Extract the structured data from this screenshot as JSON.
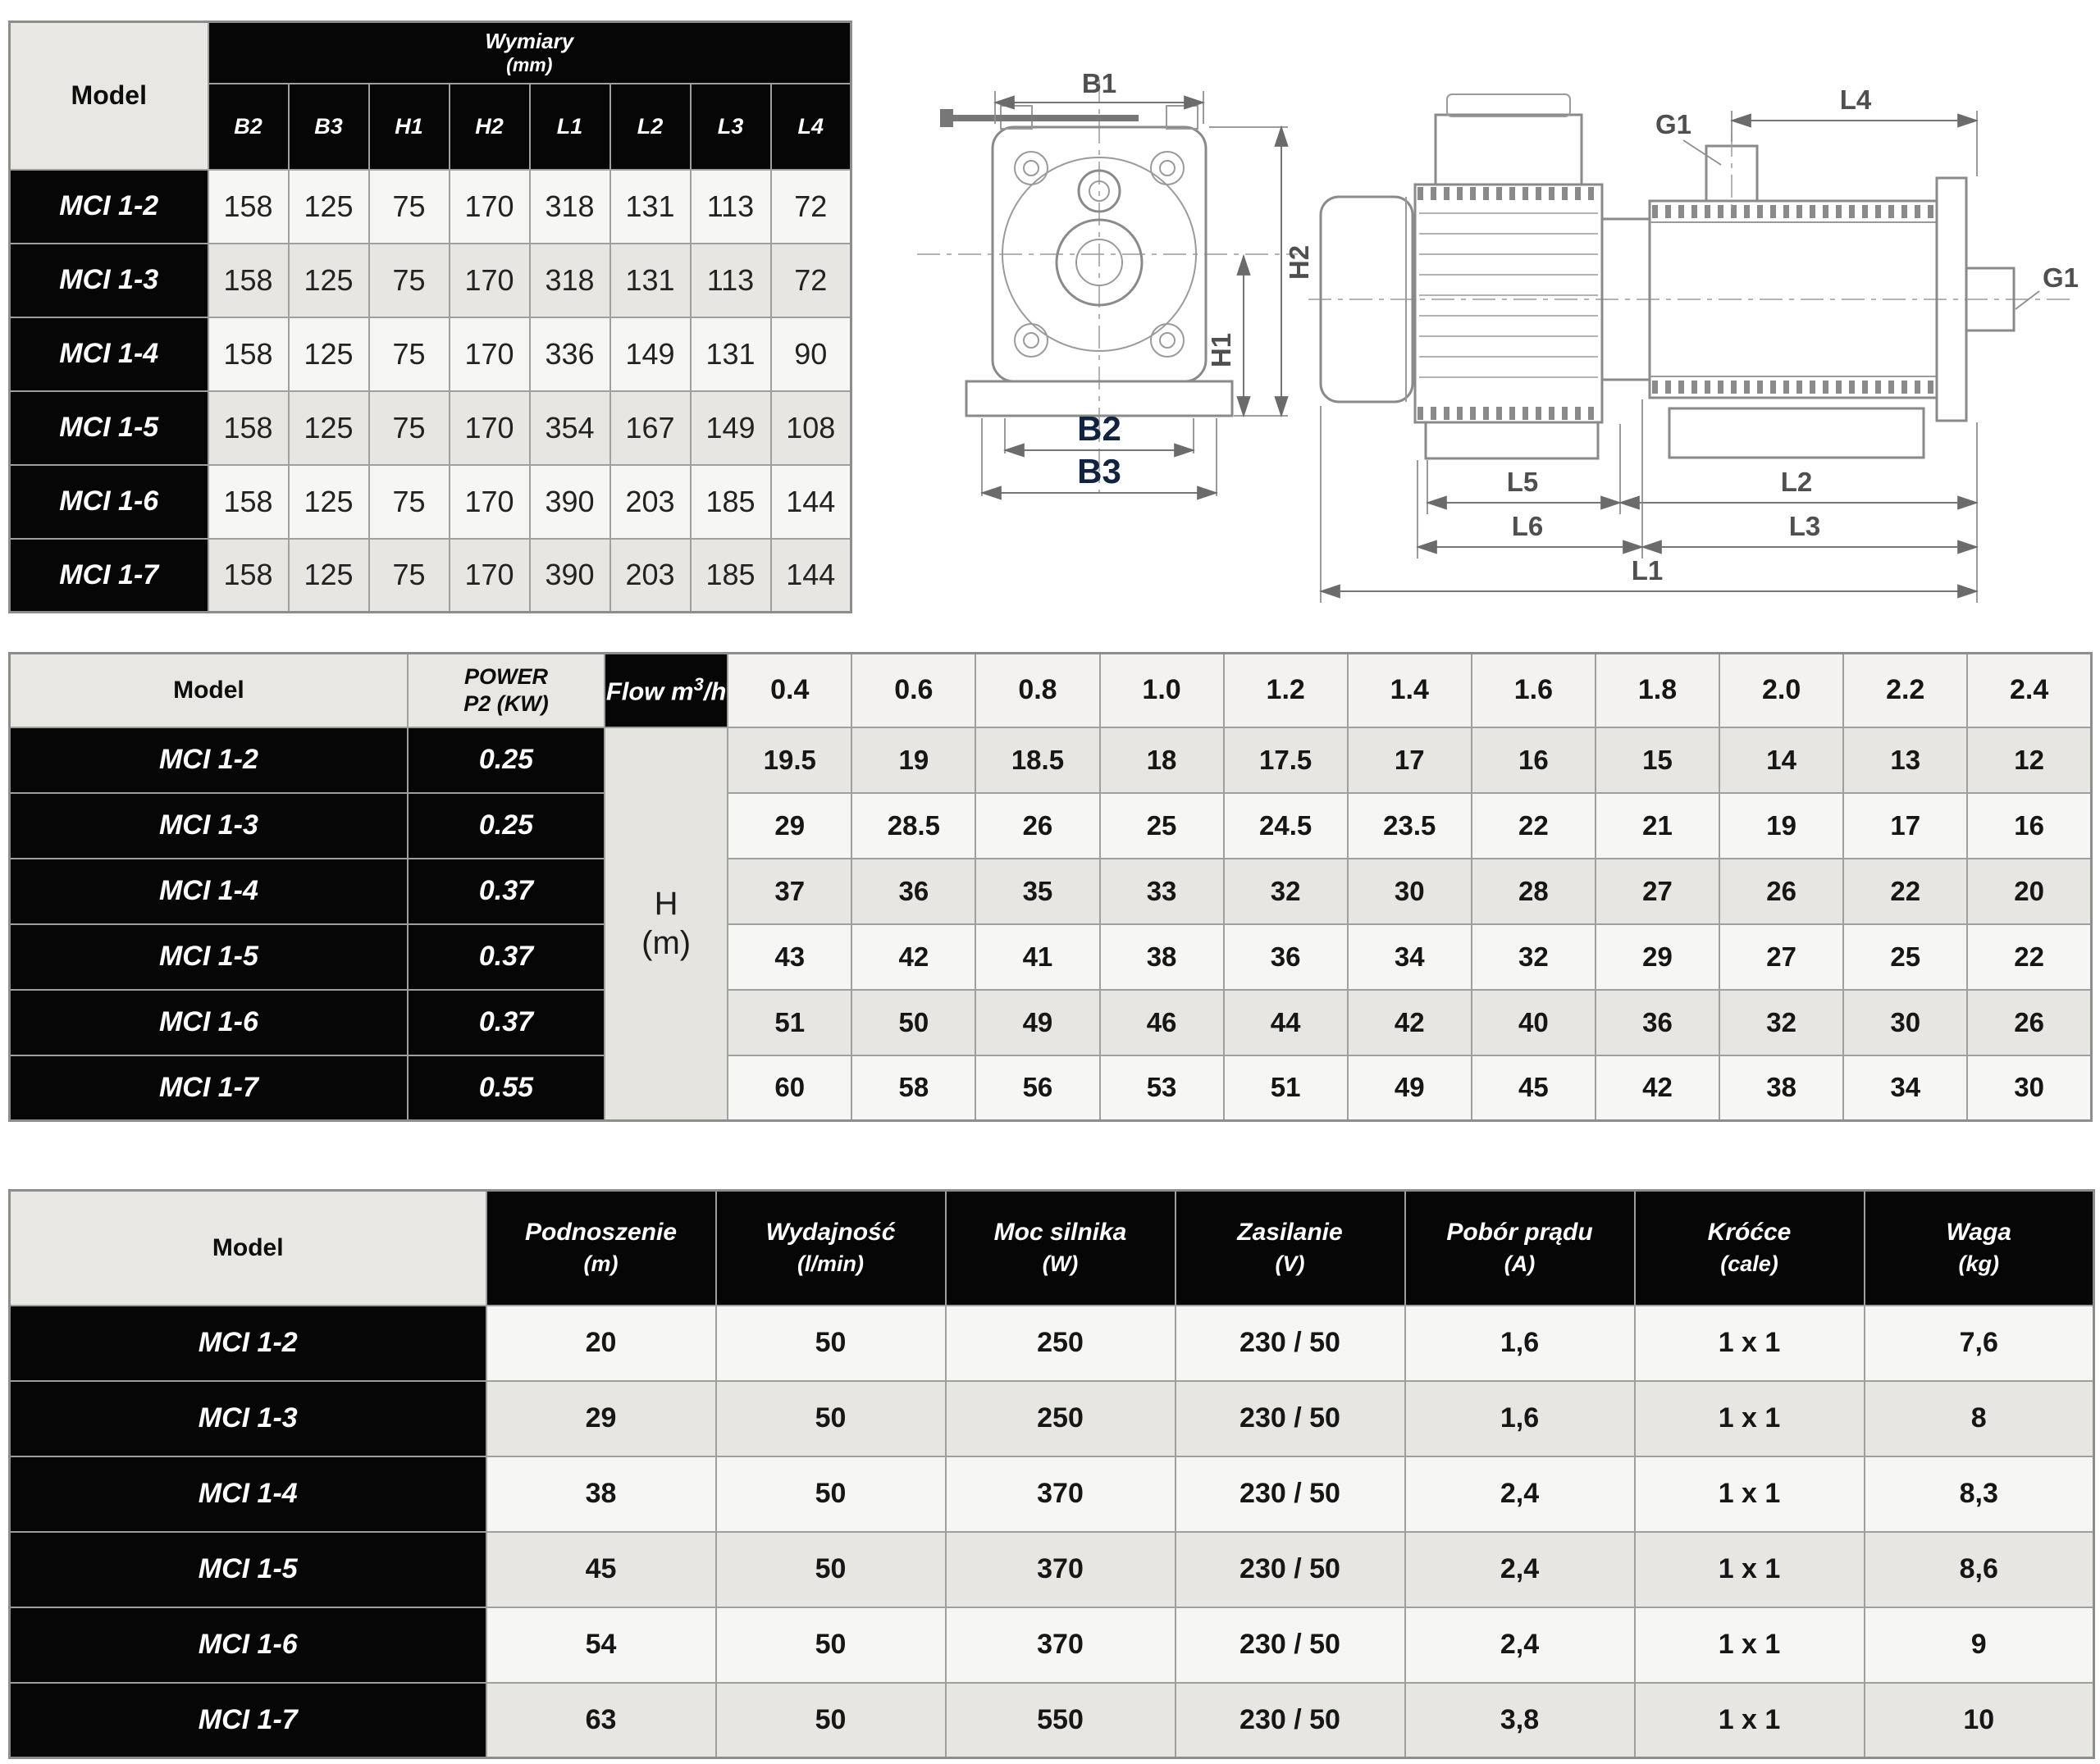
{
  "colors": {
    "header_black": "#060606",
    "header_gray": "#e8e7e3",
    "row_light": "#f6f6f4",
    "row_dark": "#e7e6e2",
    "h_cell_gray": "#e5e4e1",
    "border_gray": "#9f9f9d"
  },
  "dimensions_table": {
    "model_header": "Model",
    "group_header": "Wymiary",
    "group_unit": "(mm)",
    "columns": [
      "B2",
      "B3",
      "H1",
      "H2",
      "L1",
      "L2",
      "L3",
      "L4"
    ],
    "rows": [
      {
        "model": "MCI 1-2",
        "values": [
          "158",
          "125",
          "75",
          "170",
          "318",
          "131",
          "113",
          "72"
        ]
      },
      {
        "model": "MCI 1-3",
        "values": [
          "158",
          "125",
          "75",
          "170",
          "318",
          "131",
          "113",
          "72"
        ]
      },
      {
        "model": "MCI 1-4",
        "values": [
          "158",
          "125",
          "75",
          "170",
          "336",
          "149",
          "131",
          "90"
        ]
      },
      {
        "model": "MCI 1-5",
        "values": [
          "158",
          "125",
          "75",
          "170",
          "354",
          "167",
          "149",
          "108"
        ]
      },
      {
        "model": "MCI 1-6",
        "values": [
          "158",
          "125",
          "75",
          "170",
          "390",
          "203",
          "185",
          "144"
        ]
      },
      {
        "model": "MCI 1-7",
        "values": [
          "158",
          "125",
          "75",
          "170",
          "390",
          "203",
          "185",
          "144"
        ]
      }
    ]
  },
  "performance_table": {
    "model_header": "Model",
    "power_header_line1": "POWER",
    "power_header_line2": "P2 (KW)",
    "flow_header_prefix": "Flow m",
    "flow_header_sup": "3",
    "flow_header_suffix": "/h",
    "flow_values": [
      "0.4",
      "0.6",
      "0.8",
      "1.0",
      "1.2",
      "1.4",
      "1.6",
      "1.8",
      "2.0",
      "2.2",
      "2.4"
    ],
    "h_unit_line1": "H",
    "h_unit_line2": "(m)",
    "rows": [
      {
        "model": "MCI 1-2",
        "power": "0.25",
        "h_values": [
          "19.5",
          "19",
          "18.5",
          "18",
          "17.5",
          "17",
          "16",
          "15",
          "14",
          "13",
          "12"
        ]
      },
      {
        "model": "MCI 1-3",
        "power": "0.25",
        "h_values": [
          "29",
          "28.5",
          "26",
          "25",
          "24.5",
          "23.5",
          "22",
          "21",
          "19",
          "17",
          "16"
        ]
      },
      {
        "model": "MCI 1-4",
        "power": "0.37",
        "h_values": [
          "37",
          "36",
          "35",
          "33",
          "32",
          "30",
          "28",
          "27",
          "26",
          "22",
          "20"
        ]
      },
      {
        "model": "MCI 1-5",
        "power": "0.37",
        "h_values": [
          "43",
          "42",
          "41",
          "38",
          "36",
          "34",
          "32",
          "29",
          "27",
          "25",
          "22"
        ]
      },
      {
        "model": "MCI 1-6",
        "power": "0.37",
        "h_values": [
          "51",
          "50",
          "49",
          "46",
          "44",
          "42",
          "40",
          "36",
          "32",
          "30",
          "26"
        ]
      },
      {
        "model": "MCI 1-7",
        "power": "0.55",
        "h_values": [
          "60",
          "58",
          "56",
          "53",
          "51",
          "49",
          "45",
          "42",
          "38",
          "34",
          "30"
        ]
      }
    ]
  },
  "specs_table": {
    "model_header": "Model",
    "columns": [
      {
        "line1": "Podnoszenie",
        "line2": "(m)"
      },
      {
        "line1": "Wydajność",
        "line2": "(l/min)"
      },
      {
        "line1": "Moc silnika",
        "line2": "(W)"
      },
      {
        "line1": "Zasilanie",
        "line2": "(V)"
      },
      {
        "line1": "Pobór prądu",
        "line2": "(A)"
      },
      {
        "line1": "Króćce",
        "line2": "(cale)"
      },
      {
        "line1": "Waga",
        "line2": "(kg)"
      }
    ],
    "rows": [
      {
        "model": "MCI 1-2",
        "values": [
          "20",
          "50",
          "250",
          "230 / 50",
          "1,6",
          "1 x 1",
          "7,6"
        ]
      },
      {
        "model": "MCI 1-3",
        "values": [
          "29",
          "50",
          "250",
          "230 / 50",
          "1,6",
          "1 x 1",
          "8"
        ]
      },
      {
        "model": "MCI 1-4",
        "values": [
          "38",
          "50",
          "370",
          "230 / 50",
          "2,4",
          "1 x 1",
          "8,3"
        ]
      },
      {
        "model": "MCI 1-5",
        "values": [
          "45",
          "50",
          "370",
          "230 / 50",
          "2,4",
          "1 x 1",
          "8,6"
        ]
      },
      {
        "model": "MCI 1-6",
        "values": [
          "54",
          "50",
          "370",
          "230 / 50",
          "2,4",
          "1 x 1",
          "9"
        ]
      },
      {
        "model": "MCI 1-7",
        "values": [
          "63",
          "50",
          "550",
          "230 / 50",
          "3,8",
          "1 x 1",
          "10"
        ]
      }
    ]
  },
  "drawing": {
    "front_view_labels": {
      "b1": "B1",
      "h2": "H2",
      "h1": "H1",
      "b2": "B2",
      "b3": "B3"
    },
    "side_view_labels": {
      "g1_top": "G1",
      "l4": "L4",
      "g1_right": "G1",
      "l5": "L5",
      "l2": "L2",
      "l6": "L6",
      "l3": "L3",
      "l1": "L1"
    }
  }
}
